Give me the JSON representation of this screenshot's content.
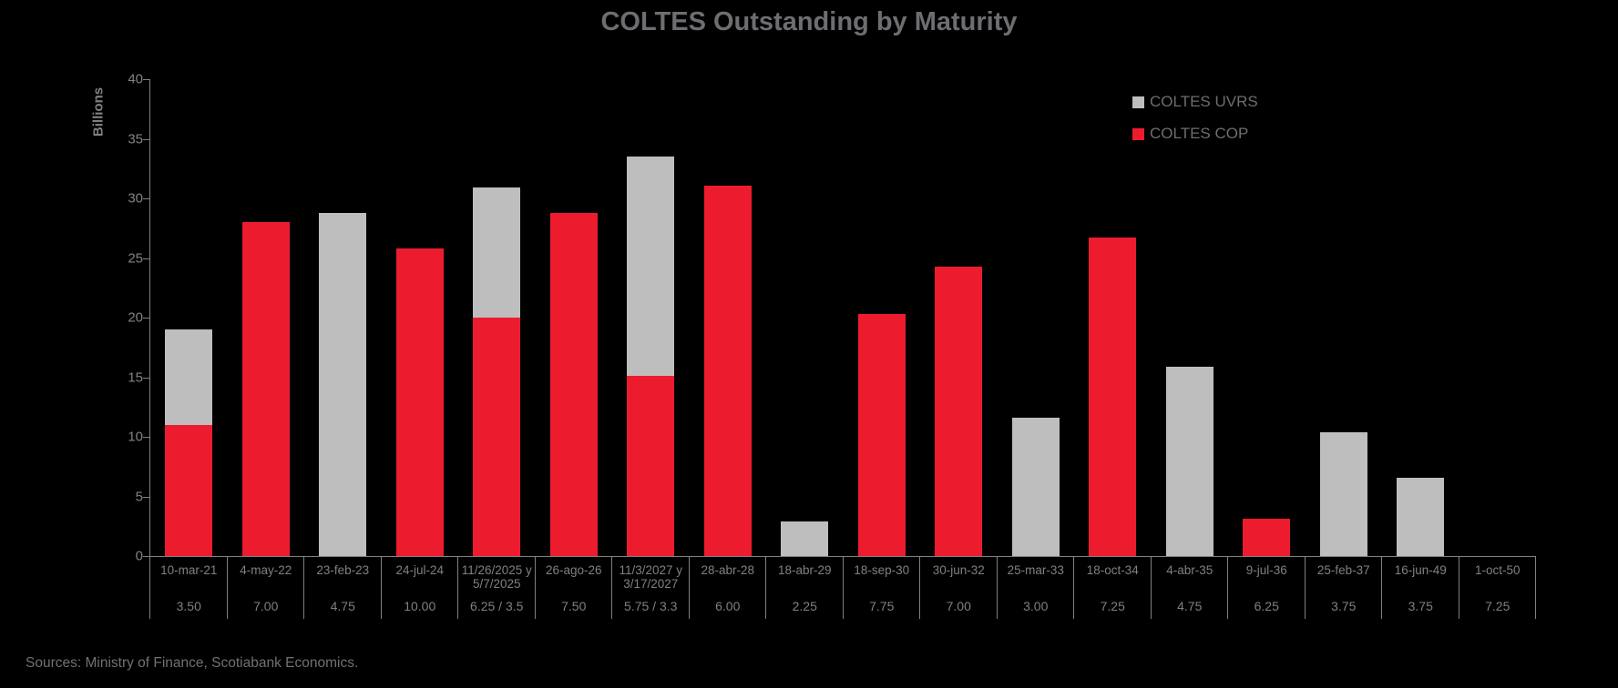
{
  "title": "COLTES Outstanding by Maturity",
  "source_note": "Sources: Ministry of Finance, Scotiabank Economics.",
  "legend": [
    {
      "label": "COLTES UVRS",
      "color": "#BEBEBE"
    },
    {
      "label": "COLTES COP",
      "color": "#EC1C2E"
    }
  ],
  "colors": {
    "background": "#000000",
    "cop_red": "#EC1C2E",
    "uvrs_gray": "#BEBEBE",
    "axis": "#7F8082",
    "axis_text": "#7E8083",
    "title_text": "#6D6E71"
  },
  "chart_data": {
    "type": "bar",
    "stacked": true,
    "title": "COLTES Outstanding by Maturity",
    "xlabel": "",
    "ylabel": "Billions",
    "ylim": [
      0,
      40
    ],
    "yticks": [
      0,
      5,
      10,
      15,
      20,
      25,
      30,
      35,
      40
    ],
    "grid": false,
    "legend_position": "upper right",
    "categories": [
      "10-mar-21",
      "4-may-22",
      "23-feb-23",
      "24-jul-24",
      "11/26/2025 y\n5/7/2025",
      "26-ago-26",
      "11/3/2027 y\n3/17/2027",
      "28-abr-28",
      "18-abr-29",
      "18-sep-30",
      "30-jun-32",
      "25-mar-33",
      "18-oct-34",
      "4-abr-35",
      "9-jul-36",
      "25-feb-37",
      "16-jun-49",
      "1-oct-50"
    ],
    "coupons": [
      "3.50",
      "7.00",
      "4.75",
      "10.00",
      "6.25 / 3.5",
      "7.50",
      "5.75 / 3.3",
      "6.00",
      "2.25",
      "7.75",
      "7.00",
      "3.00",
      "7.25",
      "4.75",
      "6.25",
      "3.75",
      "3.75",
      "7.25"
    ],
    "series": [
      {
        "name": "COLTES COP",
        "color": "#EC1C2E",
        "values": [
          11.0,
          28.0,
          0,
          25.8,
          20.0,
          28.8,
          15.1,
          31.1,
          0,
          20.3,
          24.3,
          0,
          26.7,
          0,
          3.1,
          0,
          0,
          0
        ]
      },
      {
        "name": "COLTES UVRS",
        "color": "#BEBEBE",
        "values": [
          8.0,
          0,
          28.8,
          0,
          10.9,
          0,
          18.4,
          0,
          2.9,
          0,
          0,
          11.6,
          0,
          15.9,
          0,
          10.4,
          6.6,
          0
        ]
      }
    ]
  }
}
